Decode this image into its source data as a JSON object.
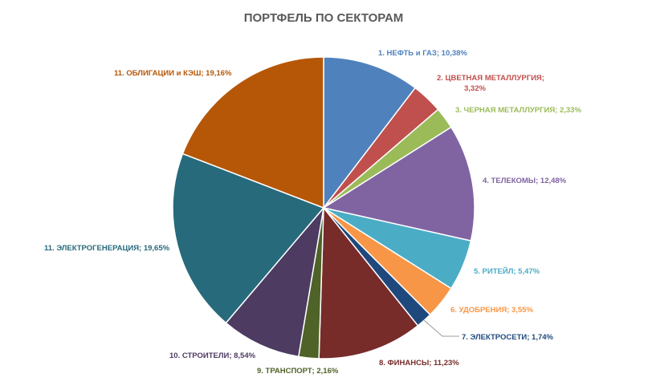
{
  "chart_data": {
    "type": "pie",
    "title": "ПОРТФЕЛЬ ПО СЕКТОРАМ",
    "slices": [
      {
        "label": "1. НЕФТЬ  и ГАЗ; 10,38%",
        "value": 10.38,
        "color": "#4f81bd"
      },
      {
        "label": "2. ЦВЕТНАЯ  МЕТАЛЛУРГИЯ;",
        "label2": "3,32%",
        "value": 3.32,
        "color": "#c0504d"
      },
      {
        "label": "3. ЧЕРНАЯ  МЕТАЛЛУРГИЯ;  2,33%",
        "value": 2.33,
        "color": "#9bbb59"
      },
      {
        "label": "4. ТЕЛЕКОМЫ;  12,48%",
        "value": 12.48,
        "color": "#8064a2"
      },
      {
        "label": "5. РИТЕЙЛ;  5,47%",
        "value": 5.47,
        "color": "#4bacc6"
      },
      {
        "label": "6. УДОБРЕНИЯ;  3,55%",
        "value": 3.55,
        "color": "#f79646"
      },
      {
        "label": "7. ЭЛЕКТРОСЕТИ;  1,74%",
        "value": 1.74,
        "color": "#1f497d"
      },
      {
        "label": "8. ФИНАНСЫ;  11,23%",
        "value": 11.23,
        "color": "#772c2a"
      },
      {
        "label": "9. ТРАНСПОРТ;  2,16%",
        "value": 2.16,
        "color": "#4f6228"
      },
      {
        "label": "10. СТРОИТЕЛИ;  8,54%",
        "value": 8.54,
        "color": "#4d3b62"
      },
      {
        "label": "11. ЭЛЕКТРОГЕНЕРАЦИЯ;  19,65%",
        "value": 19.65,
        "color": "#276a7c"
      },
      {
        "label": "11. ОБЛИГАЦИИ  и КЭШ; 19,16%",
        "value": 19.16,
        "color": "#b65708"
      }
    ],
    "label_colors": [
      "#4f81bd",
      "#c0504d",
      "#9bbb59",
      "#8064a2",
      "#4bacc6",
      "#f79646",
      "#1f497d",
      "#772c2a",
      "#4f6228",
      "#4d3b62",
      "#276a7c",
      "#b65708"
    ]
  }
}
